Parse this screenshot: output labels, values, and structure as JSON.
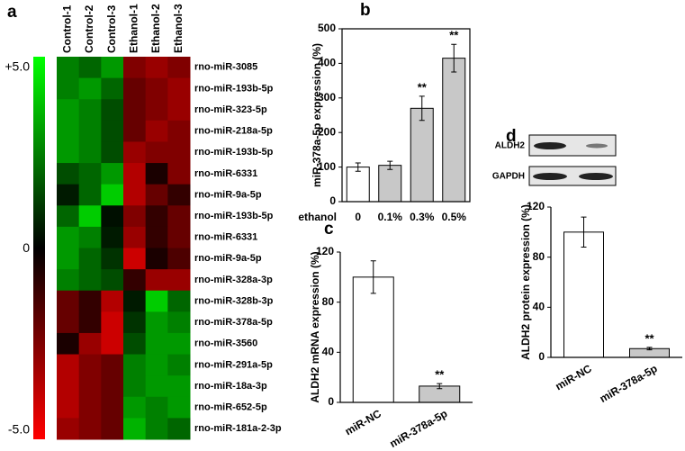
{
  "chart_data": [
    {
      "type": "heatmap",
      "panel": "a",
      "columns": [
        "Control-1",
        "Control-2",
        "Control-3",
        "Ethanol-1",
        "Ethanol-2",
        "Ethanol-3"
      ],
      "rows": [
        "rno-miR-3085",
        "rno-miR-193b-5p",
        "rno-miR-323-5p",
        "rno-miR-218a-5p",
        "rno-miR-193b-5p",
        "rno-miR-6331",
        "rno-miR-9a-5p",
        "rno-miR-193b-5p",
        "rno-miR-6331",
        "rno-miR-9a-5p",
        "rno-miR-328a-3p",
        "rno-miR-328b-3p",
        "rno-miR-378a-5p",
        "rno-miR-3560",
        "rno-miR-291a-5p",
        "rno-miR-18a-3p",
        "rno-miR-652-5p",
        "rno-miR-181a-2-3p"
      ],
      "values": [
        [
          2.5,
          2,
          3,
          -2.5,
          -3,
          -2.5
        ],
        [
          2.5,
          3,
          2,
          -2,
          -2.5,
          -3
        ],
        [
          3,
          2.5,
          1.5,
          -2,
          -2.5,
          -3
        ],
        [
          3,
          2.5,
          1.5,
          -2,
          -3,
          -2.5
        ],
        [
          3,
          2.5,
          1.5,
          -3,
          -2.5,
          -2.5
        ],
        [
          1.5,
          2,
          3,
          -3.5,
          -0.5,
          -2.5
        ],
        [
          0.5,
          2,
          4,
          -3.5,
          -2,
          -1
        ],
        [
          2,
          4,
          0.3,
          -2.5,
          -1,
          -2
        ],
        [
          3,
          2.5,
          0.5,
          -3,
          -1,
          -2
        ],
        [
          3,
          2,
          1,
          -4,
          -0.5,
          -1.5
        ],
        [
          2.5,
          2,
          1.5,
          -1,
          -3,
          -3
        ],
        [
          -2,
          -1,
          -3.5,
          0.5,
          4,
          2
        ],
        [
          -2,
          -1,
          -4,
          1,
          3,
          2.5
        ],
        [
          -0.5,
          -3,
          -4,
          1.5,
          3,
          3
        ],
        [
          -3.5,
          -2.5,
          -2,
          2.5,
          3,
          2.5
        ],
        [
          -3.5,
          -2.5,
          -2,
          2.5,
          3,
          3
        ],
        [
          -3.5,
          -2.5,
          -2,
          3,
          2.5,
          3
        ],
        [
          -3,
          -2.5,
          -2,
          3.5,
          2.5,
          2
        ]
      ],
      "zlim": [
        -5,
        5
      ],
      "colors": [
        "#ff0000",
        "#000000",
        "#00ff00"
      ],
      "colorbar_ticks": [
        {
          "value": 5,
          "label": "+5.0"
        },
        {
          "value": 0,
          "label": "0"
        },
        {
          "value": -5,
          "label": "-5.0"
        }
      ]
    },
    {
      "type": "bar",
      "panel": "b",
      "ylabel": "miR-378a-5p expression (%)",
      "xlabel": "ethanol",
      "categories": [
        "0",
        "0.1%",
        "0.3%",
        "0.5%"
      ],
      "values": [
        100,
        105,
        270,
        415
      ],
      "errors": [
        12,
        12,
        35,
        40
      ],
      "significance": [
        null,
        null,
        "**",
        "**"
      ],
      "colors": [
        "#ffffff",
        "#c8c8c8",
        "#c8c8c8",
        "#c8c8c8"
      ],
      "ylim": [
        0,
        500
      ],
      "yticks": [
        0,
        100,
        200,
        300,
        400,
        500
      ],
      "frame": true
    },
    {
      "type": "bar",
      "panel": "c",
      "ylabel": "ALDH2 mRNA expression (%)",
      "categories": [
        "miR-NC",
        "miR-378a-5p"
      ],
      "values": [
        100,
        13
      ],
      "errors": [
        13,
        2
      ],
      "significance": [
        null,
        "**"
      ],
      "colors": [
        "#ffffff",
        "#c8c8c8"
      ],
      "ylim": [
        0,
        120
      ],
      "yticks": [
        0,
        40,
        80,
        120
      ],
      "frame": false
    },
    {
      "type": "bar",
      "panel": "d",
      "ylabel": "ALDH2 protein expression (%)",
      "blot_labels": [
        "ALDH2",
        "GAPDH"
      ],
      "categories": [
        "miR-NC",
        "miR-378a-5p"
      ],
      "values": [
        100,
        7
      ],
      "errors": [
        12,
        1
      ],
      "significance": [
        null,
        "**"
      ],
      "colors": [
        "#ffffff",
        "#c8c8c8"
      ],
      "ylim": [
        0,
        120
      ],
      "yticks": [
        0,
        40,
        80,
        120
      ],
      "frame": false
    }
  ]
}
